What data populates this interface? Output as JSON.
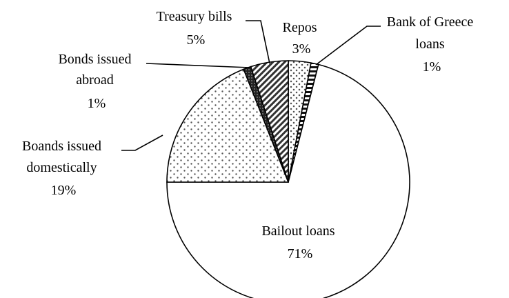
{
  "chart_data": {
    "type": "pie",
    "title": "",
    "slices": [
      {
        "label": "Repos",
        "value": 3,
        "value_label": "3%",
        "pattern": "cross-dots"
      },
      {
        "label": "Bank of Greece loans",
        "value": 1,
        "value_label": "1%",
        "pattern": "horizontal-stripes"
      },
      {
        "label": "Bailout loans",
        "value": 71,
        "value_label": "71%",
        "pattern": "none"
      },
      {
        "label": "Boands issued domestically",
        "value": 19,
        "value_label": "19%",
        "pattern": "dots"
      },
      {
        "label": "Bonds issued abroad",
        "value": 1,
        "value_label": "1%",
        "pattern": "solid-dark"
      },
      {
        "label": "Treasury bills",
        "value": 5,
        "value_label": "5%",
        "pattern": "diagonal-stripes"
      }
    ],
    "start_angle_deg": 0,
    "direction": "clockwise",
    "legend": "none",
    "labels_text": {
      "repos": [
        "Repos",
        "3%"
      ],
      "bank_of_greece": [
        "Bank of Greece",
        "loans",
        "1%"
      ],
      "bailout": [
        "Bailout loans",
        "71%"
      ],
      "domestic": [
        "Boands issued",
        "domestically",
        "19%"
      ],
      "abroad": [
        "Bonds issued",
        "abroad",
        "1%"
      ],
      "treasury": [
        "Treasury bills",
        "5%"
      ]
    }
  }
}
